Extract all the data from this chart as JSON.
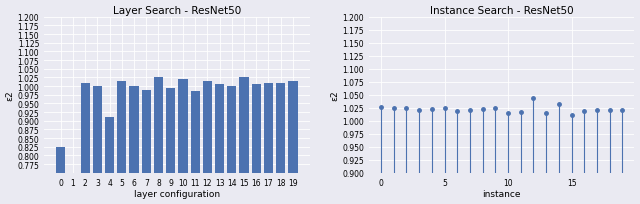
{
  "left_title": "Layer Search - ResNet50",
  "right_title": "Instance Search - ResNet50",
  "left_xlabel": "layer configuration",
  "right_xlabel": "instance",
  "left_ylabel": "ε2",
  "right_ylabel": "ε2",
  "bar_x": [
    0,
    1,
    2,
    3,
    4,
    5,
    6,
    7,
    8,
    9,
    10,
    11,
    12,
    13,
    14,
    15,
    16,
    17,
    18,
    19
  ],
  "bar_values": [
    0.825,
    0.0,
    1.01,
    1.0,
    0.91,
    1.015,
    1.0,
    0.99,
    1.025,
    0.995,
    1.02,
    0.985,
    1.015,
    1.005,
    1.0,
    1.027,
    1.007,
    1.01,
    1.01,
    1.015
  ],
  "bar_color": "#4c72b0",
  "left_ylim": [
    0.75,
    1.2
  ],
  "left_yticks": [
    0.775,
    0.8,
    0.825,
    0.85,
    0.875,
    0.9,
    0.925,
    0.95,
    0.975,
    1.0,
    1.025,
    1.05,
    1.075,
    1.1,
    1.125,
    1.15,
    1.175,
    1.2
  ],
  "stem_x": [
    0,
    1,
    2,
    3,
    4,
    5,
    6,
    7,
    8,
    9,
    10,
    11,
    12,
    13,
    14,
    15,
    16,
    17,
    18,
    19
  ],
  "stem_values": [
    1.026,
    1.025,
    1.025,
    1.02,
    1.022,
    1.024,
    1.018,
    1.02,
    1.022,
    1.025,
    1.015,
    1.017,
    1.043,
    1.014,
    1.033,
    1.011,
    1.018,
    1.02,
    1.021,
    1.021
  ],
  "right_ylim": [
    0.9,
    1.2
  ],
  "right_yticks": [
    0.9,
    0.925,
    0.95,
    0.975,
    1.0,
    1.025,
    1.05,
    1.075,
    1.1,
    1.125,
    1.15,
    1.175,
    1.2
  ],
  "right_xticks": [
    0,
    5,
    10,
    15
  ],
  "stem_color": "#4c72b0",
  "bg_color": "#eaeaf2",
  "grid_color": "#ffffff",
  "fig_bg_color": "#eaeaf2",
  "title_fontsize": 7.5,
  "label_fontsize": 6.5,
  "tick_fontsize": 5.5
}
